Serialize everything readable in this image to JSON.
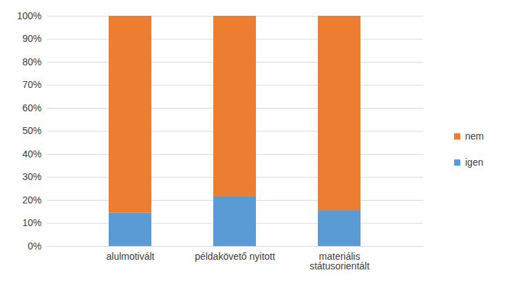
{
  "chart_data": {
    "type": "bar",
    "stacked": true,
    "grid": true,
    "legend": "right",
    "categories": [
      "alulmotivált",
      "példakövető nyitott",
      "materiális státusorientált"
    ],
    "series": [
      {
        "name": "igen",
        "color": "#5b9bd5",
        "values": [
          14.5,
          21.5,
          15.5
        ]
      },
      {
        "name": "nem",
        "color": "#ed7d31",
        "values": [
          85.5,
          78.5,
          84.5
        ]
      }
    ],
    "ylim": [
      0,
      100
    ],
    "yticks": [
      {
        "value": 0,
        "label": "0%"
      },
      {
        "value": 10,
        "label": "10%"
      },
      {
        "value": 20,
        "label": "20%"
      },
      {
        "value": 30,
        "label": "30%"
      },
      {
        "value": 40,
        "label": "40%"
      },
      {
        "value": 50,
        "label": "50%"
      },
      {
        "value": 60,
        "label": "60%"
      },
      {
        "value": 70,
        "label": "70%"
      },
      {
        "value": 80,
        "label": "80%"
      },
      {
        "value": 90,
        "label": "90%"
      },
      {
        "value": 100,
        "label": "100%"
      }
    ]
  }
}
